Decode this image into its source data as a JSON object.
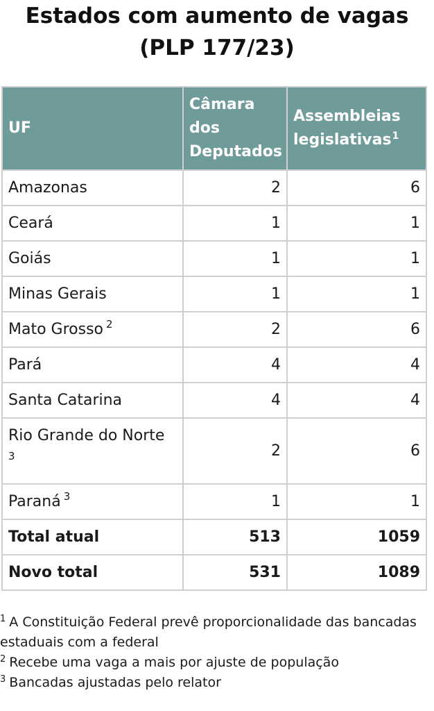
{
  "title": {
    "line1": "Estados com aumento de vagas",
    "line2": "(PLP 177/23)"
  },
  "table": {
    "headers": {
      "uf": "UF",
      "camara": "Câmara dos Deputados",
      "assembleias": "Assembleias legislativas",
      "assembleias_sup": "1"
    },
    "rows": [
      {
        "uf": "Amazonas",
        "sup": "",
        "camara": "2",
        "assembleias": "6"
      },
      {
        "uf": "Ceará",
        "sup": "",
        "camara": "1",
        "assembleias": "1"
      },
      {
        "uf": "Goiás",
        "sup": "",
        "camara": "1",
        "assembleias": "1"
      },
      {
        "uf": "Minas Gerais",
        "sup": "",
        "camara": "1",
        "assembleias": "1"
      },
      {
        "uf": "Mato Grosso",
        "sup": "2",
        "camara": "2",
        "assembleias": "6"
      },
      {
        "uf": "Pará",
        "sup": "",
        "camara": "4",
        "assembleias": "4"
      },
      {
        "uf": "Santa Catarina",
        "sup": "",
        "camara": "4",
        "assembleias": "4"
      },
      {
        "uf": "Rio Grande do Norte",
        "sup": "3",
        "camara": "2",
        "assembleias": "6"
      },
      {
        "uf": "Paraná",
        "sup": "3",
        "camara": "1",
        "assembleias": "1"
      }
    ],
    "totals": [
      {
        "label": "Total atual",
        "camara": "513",
        "assembleias": "1059"
      },
      {
        "label": "Novo total",
        "camara": "531",
        "assembleias": "1089"
      }
    ]
  },
  "notes": [
    {
      "mark": "1",
      "text": "A Constituição Federal prevê proporcionalidade das bancadas estaduais com a federal"
    },
    {
      "mark": "2",
      "text": "Recebe uma vaga a mais por ajuste de população"
    },
    {
      "mark": "3",
      "text": "Bancadas ajustadas pelo relator"
    }
  ],
  "colors": {
    "header_bg": "#6f9c9a",
    "header_text": "#ffffff",
    "border": "#cfcfcf"
  }
}
